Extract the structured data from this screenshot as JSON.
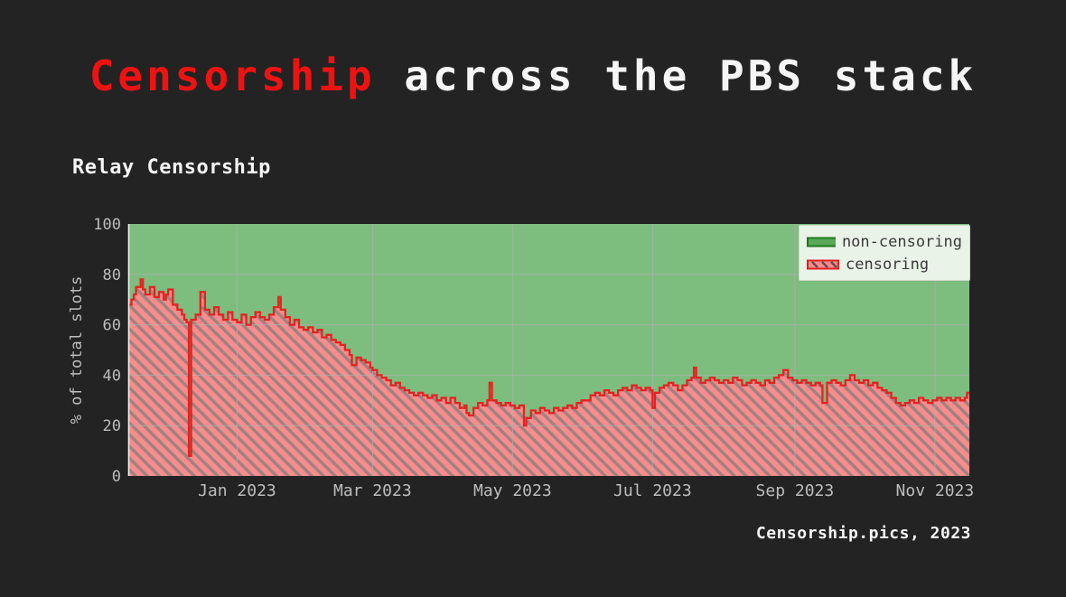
{
  "slide": {
    "title": {
      "highlight": "Censorship",
      "rest": " across the PBS stack"
    },
    "subheading": "Relay Censorship",
    "footer": "Censorship.pics, 2023"
  },
  "colors": {
    "background": "#232323",
    "title_highlight": "#ef1212",
    "text_light": "#f5f5f5",
    "tick_text": "#bdbdbd",
    "non_censoring_fill": "#7dbd7d",
    "censoring_fill": "#f98c8c",
    "censoring_hatch": "#a08280",
    "censoring_line": "#e52222",
    "axis_spine": "#f0f0f0",
    "grid": "#b0b0b0",
    "legend_bg": "#eaf3e7",
    "legend_text": "#3a3a3a"
  },
  "chart_data": {
    "type": "area",
    "title": "Relay Censorship",
    "ylabel": "% of total slots",
    "xlabel": "",
    "ylim": [
      0,
      100
    ],
    "yticks": [
      0,
      20,
      40,
      60,
      80,
      100
    ],
    "grid": true,
    "legend_position": "upper right",
    "x_range": [
      "2022-11-15",
      "2023-11-16"
    ],
    "xticks": [
      {
        "date": "2023-01-01",
        "label": "Jan 2023"
      },
      {
        "date": "2023-03-01",
        "label": "Mar 2023"
      },
      {
        "date": "2023-05-01",
        "label": "May 2023"
      },
      {
        "date": "2023-07-01",
        "label": "Jul 2023"
      },
      {
        "date": "2023-09-01",
        "label": "Sep 2023"
      },
      {
        "date": "2023-11-01",
        "label": "Nov 2023"
      }
    ],
    "legend": [
      {
        "label": "non-censoring",
        "color": "#7dbd7d",
        "hatch": "none"
      },
      {
        "label": "censoring",
        "color": "#f98c8c",
        "hatch": "diagonal"
      }
    ],
    "stacking_note": "non-censoring fills the remainder up to 100%",
    "series": [
      {
        "name": "censoring",
        "unit": "% of total slots",
        "points": [
          [
            "2022-11-15",
            68
          ],
          [
            "2022-11-16",
            70
          ],
          [
            "2022-11-17",
            72
          ],
          [
            "2022-11-18",
            75
          ],
          [
            "2022-11-20",
            78
          ],
          [
            "2022-11-21",
            74
          ],
          [
            "2022-11-22",
            72
          ],
          [
            "2022-11-24",
            75
          ],
          [
            "2022-11-26",
            71
          ],
          [
            "2022-11-28",
            73
          ],
          [
            "2022-11-30",
            70
          ],
          [
            "2022-12-01",
            72
          ],
          [
            "2022-12-02",
            74
          ],
          [
            "2022-12-04",
            68
          ],
          [
            "2022-12-06",
            66
          ],
          [
            "2022-12-08",
            64
          ],
          [
            "2022-12-09",
            62
          ],
          [
            "2022-12-10",
            61
          ],
          [
            "2022-12-11",
            8
          ],
          [
            "2022-12-12",
            62
          ],
          [
            "2022-12-14",
            64
          ],
          [
            "2022-12-16",
            73
          ],
          [
            "2022-12-18",
            66
          ],
          [
            "2022-12-20",
            64
          ],
          [
            "2022-12-22",
            67
          ],
          [
            "2022-12-24",
            64
          ],
          [
            "2022-12-26",
            62
          ],
          [
            "2022-12-28",
            65
          ],
          [
            "2022-12-30",
            62
          ],
          [
            "2023-01-01",
            61
          ],
          [
            "2023-01-03",
            64
          ],
          [
            "2023-01-05",
            60
          ],
          [
            "2023-01-07",
            63
          ],
          [
            "2023-01-09",
            65
          ],
          [
            "2023-01-11",
            63
          ],
          [
            "2023-01-13",
            62
          ],
          [
            "2023-01-15",
            64
          ],
          [
            "2023-01-17",
            67
          ],
          [
            "2023-01-19",
            71
          ],
          [
            "2023-01-20",
            66
          ],
          [
            "2023-01-22",
            63
          ],
          [
            "2023-01-24",
            60
          ],
          [
            "2023-01-26",
            62
          ],
          [
            "2023-01-28",
            59
          ],
          [
            "2023-01-30",
            58
          ],
          [
            "2023-02-01",
            59
          ],
          [
            "2023-02-03",
            57
          ],
          [
            "2023-02-05",
            58
          ],
          [
            "2023-02-07",
            55
          ],
          [
            "2023-02-09",
            56
          ],
          [
            "2023-02-11",
            54
          ],
          [
            "2023-02-13",
            53
          ],
          [
            "2023-02-15",
            52
          ],
          [
            "2023-02-17",
            50
          ],
          [
            "2023-02-19",
            48
          ],
          [
            "2023-02-20",
            44
          ],
          [
            "2023-02-22",
            47
          ],
          [
            "2023-02-24",
            46
          ],
          [
            "2023-02-26",
            45
          ],
          [
            "2023-02-28",
            43
          ],
          [
            "2023-03-01",
            42
          ],
          [
            "2023-03-03",
            40
          ],
          [
            "2023-03-05",
            39
          ],
          [
            "2023-03-07",
            38
          ],
          [
            "2023-03-09",
            36
          ],
          [
            "2023-03-11",
            37
          ],
          [
            "2023-03-13",
            35
          ],
          [
            "2023-03-15",
            34
          ],
          [
            "2023-03-17",
            33
          ],
          [
            "2023-03-19",
            32
          ],
          [
            "2023-03-21",
            33
          ],
          [
            "2023-03-23",
            32
          ],
          [
            "2023-03-25",
            31
          ],
          [
            "2023-03-27",
            32
          ],
          [
            "2023-03-29",
            30
          ],
          [
            "2023-03-31",
            31
          ],
          [
            "2023-04-02",
            29
          ],
          [
            "2023-04-04",
            31
          ],
          [
            "2023-04-06",
            29
          ],
          [
            "2023-04-08",
            27
          ],
          [
            "2023-04-10",
            28
          ],
          [
            "2023-04-11",
            25
          ],
          [
            "2023-04-12",
            24
          ],
          [
            "2023-04-14",
            27
          ],
          [
            "2023-04-16",
            29
          ],
          [
            "2023-04-18",
            28
          ],
          [
            "2023-04-20",
            30
          ],
          [
            "2023-04-21",
            37
          ],
          [
            "2023-04-22",
            30
          ],
          [
            "2023-04-24",
            29
          ],
          [
            "2023-04-26",
            28
          ],
          [
            "2023-04-28",
            29
          ],
          [
            "2023-04-30",
            28
          ],
          [
            "2023-05-02",
            27
          ],
          [
            "2023-05-04",
            28
          ],
          [
            "2023-05-06",
            20
          ],
          [
            "2023-05-07",
            23
          ],
          [
            "2023-05-09",
            26
          ],
          [
            "2023-05-11",
            25
          ],
          [
            "2023-05-13",
            27
          ],
          [
            "2023-05-15",
            26
          ],
          [
            "2023-05-17",
            25
          ],
          [
            "2023-05-19",
            27
          ],
          [
            "2023-05-21",
            26
          ],
          [
            "2023-05-23",
            27
          ],
          [
            "2023-05-25",
            28
          ],
          [
            "2023-05-27",
            27
          ],
          [
            "2023-05-29",
            29
          ],
          [
            "2023-05-31",
            30
          ],
          [
            "2023-06-02",
            30
          ],
          [
            "2023-06-04",
            32
          ],
          [
            "2023-06-06",
            33
          ],
          [
            "2023-06-08",
            32
          ],
          [
            "2023-06-10",
            34
          ],
          [
            "2023-06-12",
            33
          ],
          [
            "2023-06-14",
            32
          ],
          [
            "2023-06-16",
            34
          ],
          [
            "2023-06-18",
            35
          ],
          [
            "2023-06-20",
            34
          ],
          [
            "2023-06-22",
            36
          ],
          [
            "2023-06-24",
            35
          ],
          [
            "2023-06-26",
            34
          ],
          [
            "2023-06-28",
            35
          ],
          [
            "2023-06-30",
            34
          ],
          [
            "2023-07-01",
            27
          ],
          [
            "2023-07-02",
            33
          ],
          [
            "2023-07-04",
            35
          ],
          [
            "2023-07-06",
            36
          ],
          [
            "2023-07-08",
            37
          ],
          [
            "2023-07-10",
            36
          ],
          [
            "2023-07-12",
            34
          ],
          [
            "2023-07-14",
            36
          ],
          [
            "2023-07-16",
            38
          ],
          [
            "2023-07-18",
            39
          ],
          [
            "2023-07-19",
            43
          ],
          [
            "2023-07-20",
            39
          ],
          [
            "2023-07-22",
            37
          ],
          [
            "2023-07-24",
            38
          ],
          [
            "2023-07-26",
            39
          ],
          [
            "2023-07-28",
            38
          ],
          [
            "2023-07-30",
            37
          ],
          [
            "2023-08-01",
            38
          ],
          [
            "2023-08-03",
            37
          ],
          [
            "2023-08-05",
            39
          ],
          [
            "2023-08-07",
            38
          ],
          [
            "2023-08-09",
            36
          ],
          [
            "2023-08-11",
            37
          ],
          [
            "2023-08-13",
            38
          ],
          [
            "2023-08-15",
            37
          ],
          [
            "2023-08-17",
            36
          ],
          [
            "2023-08-19",
            38
          ],
          [
            "2023-08-21",
            37
          ],
          [
            "2023-08-23",
            39
          ],
          [
            "2023-08-25",
            40
          ],
          [
            "2023-08-27",
            42
          ],
          [
            "2023-08-29",
            39
          ],
          [
            "2023-08-31",
            38
          ],
          [
            "2023-09-02",
            37
          ],
          [
            "2023-09-04",
            38
          ],
          [
            "2023-09-06",
            37
          ],
          [
            "2023-09-08",
            36
          ],
          [
            "2023-09-10",
            37
          ],
          [
            "2023-09-12",
            36
          ],
          [
            "2023-09-13",
            29
          ],
          [
            "2023-09-15",
            37
          ],
          [
            "2023-09-17",
            38
          ],
          [
            "2023-09-19",
            37
          ],
          [
            "2023-09-21",
            36
          ],
          [
            "2023-09-23",
            38
          ],
          [
            "2023-09-25",
            40
          ],
          [
            "2023-09-27",
            38
          ],
          [
            "2023-09-29",
            37
          ],
          [
            "2023-10-01",
            38
          ],
          [
            "2023-10-03",
            36
          ],
          [
            "2023-10-05",
            37
          ],
          [
            "2023-10-07",
            35
          ],
          [
            "2023-10-09",
            34
          ],
          [
            "2023-10-11",
            33
          ],
          [
            "2023-10-13",
            31
          ],
          [
            "2023-10-15",
            29
          ],
          [
            "2023-10-17",
            28
          ],
          [
            "2023-10-19",
            29
          ],
          [
            "2023-10-21",
            30
          ],
          [
            "2023-10-23",
            29
          ],
          [
            "2023-10-25",
            31
          ],
          [
            "2023-10-27",
            30
          ],
          [
            "2023-10-29",
            29
          ],
          [
            "2023-10-31",
            30
          ],
          [
            "2023-11-02",
            31
          ],
          [
            "2023-11-04",
            30
          ],
          [
            "2023-11-06",
            31
          ],
          [
            "2023-11-08",
            30
          ],
          [
            "2023-11-10",
            31
          ],
          [
            "2023-11-12",
            30
          ],
          [
            "2023-11-14",
            31
          ],
          [
            "2023-11-15",
            33
          ],
          [
            "2023-11-16",
            33
          ]
        ]
      }
    ]
  }
}
